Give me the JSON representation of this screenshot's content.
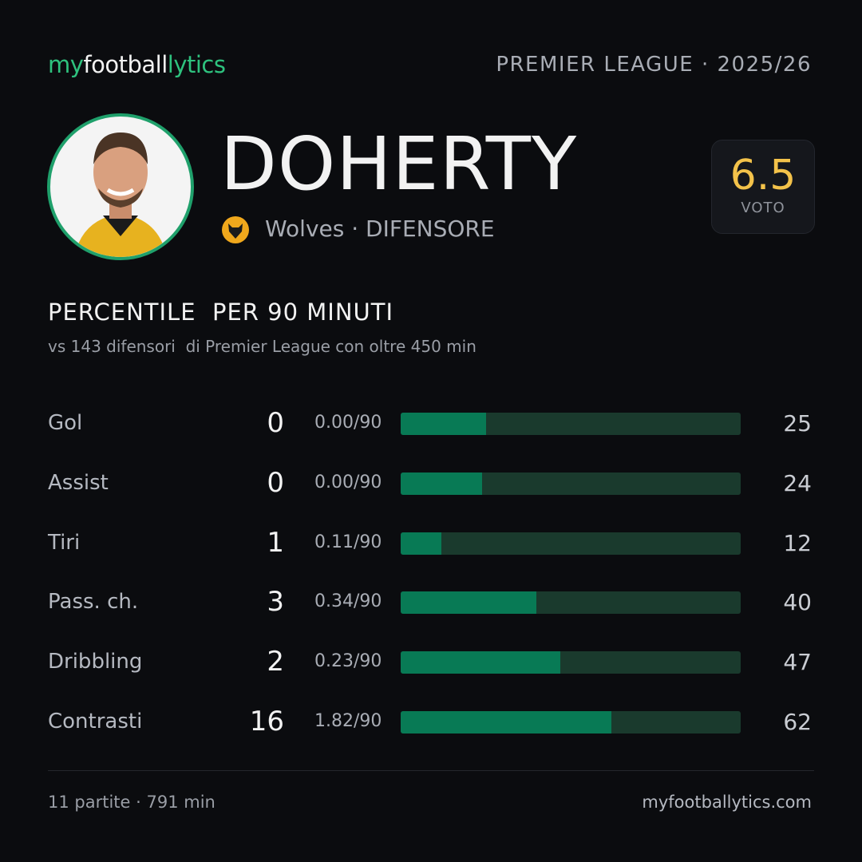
{
  "header": {
    "logo": [
      "my",
      "football",
      "lytics"
    ],
    "league": "PREMIER LEAGUE · 2025/26"
  },
  "player": {
    "name": "DOHERTY",
    "team": "Wolves · DIFENSORE",
    "rating": 6.5,
    "rating_label": "VOTO"
  },
  "section": {
    "title": "PERCENTILE  PER 90 MINUTI",
    "subtitle": "vs 143 difensori  di Premier League con oltre 450 min"
  },
  "stats": {
    "rows": [
      {
        "label": "Gol",
        "total": 0,
        "per90": "0.00/90",
        "percentile": 25
      },
      {
        "label": "Assist",
        "total": 0,
        "per90": "0.00/90",
        "percentile": 24
      },
      {
        "label": "Tiri",
        "total": 1,
        "per90": "0.11/90",
        "percentile": 12
      },
      {
        "label": "Pass. ch.",
        "total": 3,
        "per90": "0.34/90",
        "percentile": 40
      },
      {
        "label": "Dribbling",
        "total": 2,
        "per90": "0.23/90",
        "percentile": 47
      },
      {
        "label": "Contrasti",
        "total": 16,
        "per90": "1.82/90",
        "percentile": 62
      }
    ]
  },
  "footer": {
    "summary": "11 partite · 791 min",
    "site": "myfootballytics.com"
  }
}
